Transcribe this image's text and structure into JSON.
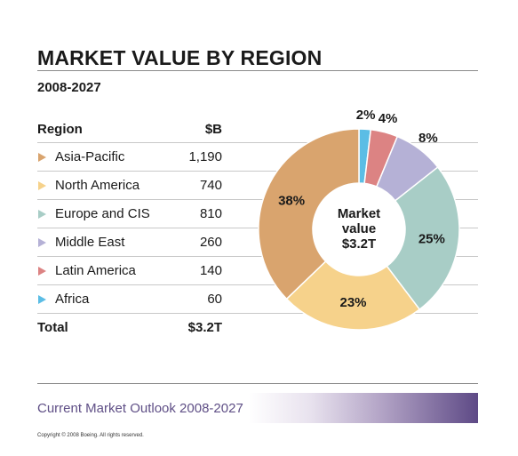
{
  "title": "MARKET VALUE BY REGION",
  "subtitle": "2008-2027",
  "table": {
    "header": {
      "region": "Region",
      "value": "$B"
    },
    "rows": [
      {
        "region": "Asia-Pacific",
        "value": "1,190",
        "color": "#d9a46e"
      },
      {
        "region": "North America",
        "value": "740",
        "color": "#f6d28b"
      },
      {
        "region": "Europe and CIS",
        "value": "810",
        "color": "#a8cdc6"
      },
      {
        "region": "Middle East",
        "value": "260",
        "color": "#b5b1d6"
      },
      {
        "region": "Latin America",
        "value": "140",
        "color": "#dc8383"
      },
      {
        "region": "Africa",
        "value": "60",
        "color": "#5bbde5"
      }
    ],
    "total": {
      "region": "Total",
      "value": "$3.2T"
    }
  },
  "chart_data": {
    "type": "pie",
    "donut": true,
    "center_label": [
      "Market",
      "value",
      "$3.2T"
    ],
    "slices": [
      {
        "label": "Africa",
        "value": 60,
        "percent": "2%",
        "color": "#5bbde5"
      },
      {
        "label": "Latin America",
        "value": 140,
        "percent": "4%",
        "color": "#dc8383"
      },
      {
        "label": "Middle East",
        "value": 260,
        "percent": "8%",
        "color": "#b5b1d6"
      },
      {
        "label": "Europe and CIS",
        "value": 810,
        "percent": "25%",
        "color": "#a8cdc6"
      },
      {
        "label": "North America",
        "value": 740,
        "percent": "23%",
        "color": "#f6d28b"
      },
      {
        "label": "Asia-Pacific",
        "value": 1190,
        "percent": "38%",
        "color": "#d9a46e"
      }
    ]
  },
  "footer": {
    "text": "Current Market Outlook 2008-2027",
    "copyright": "Copyright © 2008 Boeing. All rights reserved."
  }
}
